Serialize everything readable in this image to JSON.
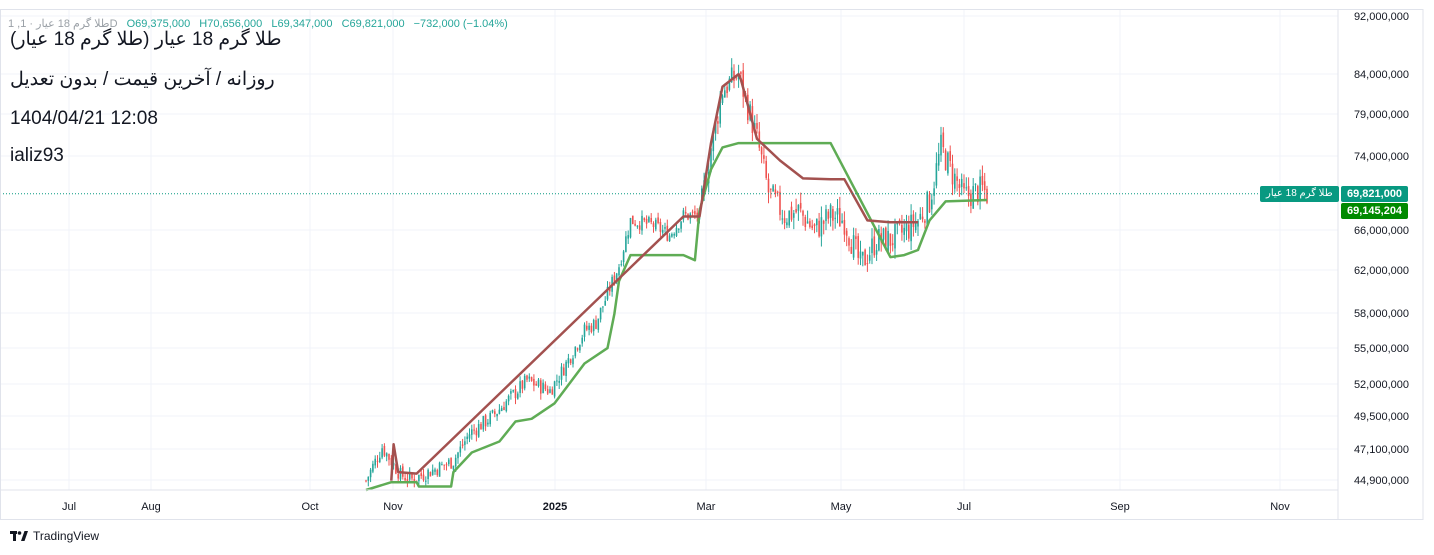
{
  "header": {
    "ohlc_prefix": "1 ,طلا گرم 18 عیار · 1D",
    "open": "O69,375,000",
    "high": "H70,656,000",
    "low": "L69,347,000",
    "close": "C69,821,000",
    "change": "−732,000 (−1.04%)"
  },
  "title_lines": [
    "طلا گرم 18 عیار (طلا گرم 18 عیار)",
    "روزانه / آخرین قیمت / بدون تعدیل",
    "1404/04/21 12:08",
    "ializ93"
  ],
  "branding": {
    "text": "TradingView",
    "icon": "tradingview-logo-icon"
  },
  "colors": {
    "up": "#26a69a",
    "down": "#ef5350",
    "support": "#5fac55",
    "resistance": "#a3514f",
    "last_price": "#089981",
    "indicator_badge": "#008a00"
  },
  "price_badges": {
    "symbol_label": "طلا گرم 18 عیار",
    "last_price": "69,821,000",
    "indicator_value": "69,145,204"
  },
  "chart_data": {
    "type": "candlestick",
    "x_labels": [
      "Jul",
      "Aug",
      "Oct",
      "Nov",
      "2025",
      "Mar",
      "May",
      "Jul",
      "Sep",
      "Nov"
    ],
    "y_axis": {
      "scale": "log",
      "tick_labels": [
        "92,000,000",
        "84,000,000",
        "79,000,000",
        "74,000,000",
        "66,000,000",
        "62,000,000",
        "58,000,000",
        "55,000,000",
        "52,000,000",
        "49,500,000",
        "47,100,000",
        "44,900,000"
      ],
      "tick_values": [
        92000000,
        84000000,
        79000000,
        74000000,
        66000000,
        62000000,
        58000000,
        55000000,
        52000000,
        49500000,
        47100000,
        44900000
      ]
    },
    "last_price": 69821000,
    "indicator_last": 69145204,
    "price_path_days": [
      0,
      7,
      15,
      20,
      30,
      38,
      45,
      55,
      62,
      70,
      80,
      85,
      95,
      100,
      110,
      115,
      125,
      132,
      138,
      145,
      150,
      155,
      162,
      170,
      175,
      182,
      188,
      195,
      202,
      208,
      215,
      222,
      228,
      235,
      240,
      245,
      250,
      255,
      260,
      268,
      270
    ],
    "price_path_values": [
      44800000,
      47200000,
      45200000,
      44900000,
      45600000,
      46200000,
      48200000,
      49500000,
      50800000,
      52300000,
      51500000,
      53000000,
      56500000,
      57200000,
      62500000,
      67000000,
      66500000,
      65500000,
      67500000,
      67500000,
      75000000,
      82000000,
      84000000,
      76000000,
      70000000,
      67500000,
      68000000,
      66000000,
      67500000,
      67000000,
      62500000,
      65000000,
      65000000,
      66000000,
      67000000,
      69000000,
      75000000,
      72000000,
      69500000,
      70300000,
      69800000
    ],
    "start_day": 0,
    "end_day": 270,
    "support_line": {
      "days": [
        0,
        11,
        12,
        22,
        23,
        37,
        38,
        46,
        58,
        65,
        72,
        82,
        95,
        105,
        108,
        110,
        115,
        130,
        138,
        143,
        145,
        150,
        155,
        162,
        177,
        190,
        202,
        228,
        234,
        240,
        245,
        252,
        270
      ],
      "values": [
        44000000,
        44700000,
        44700000,
        44700000,
        44400000,
        44400000,
        45400000,
        46800000,
        47600000,
        49100000,
        49300000,
        50500000,
        53700000,
        55000000,
        58000000,
        61000000,
        63500000,
        63500000,
        63500000,
        63000000,
        68000000,
        72500000,
        75000000,
        75500000,
        75500000,
        75500000,
        75500000,
        63300000,
        63500000,
        64000000,
        67000000,
        69000000,
        69145204
      ]
    },
    "resistance_line": {
      "days": [
        11,
        12,
        14,
        22,
        138,
        140,
        145,
        150,
        155,
        162,
        163,
        170,
        180,
        190,
        202,
        208,
        218,
        228,
        240
      ],
      "values": [
        44800000,
        47400000,
        45400000,
        45300000,
        67400000,
        67400000,
        67400000,
        75500000,
        82400000,
        84000000,
        83300000,
        76000000,
        73500000,
        71500000,
        71400000,
        71400000,
        67000000,
        66800000,
        66800000
      ]
    }
  }
}
